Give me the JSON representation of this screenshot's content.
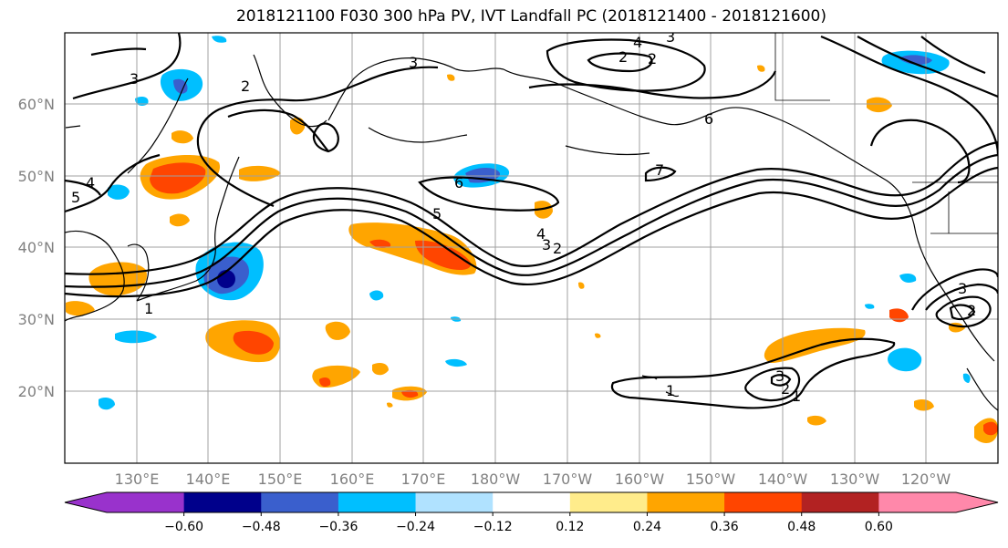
{
  "title": "2018121100 F030 300 hPa PV, IVT Landfall PC (2018121400 - 2018121600)",
  "map": {
    "lat_labels": [
      "60°N",
      "50°N",
      "40°N",
      "30°N",
      "20°N"
    ],
    "lon_labels": [
      "130°E",
      "140°E",
      "150°E",
      "160°E",
      "170°E",
      "180°W",
      "170°W",
      "160°W",
      "150°W",
      "140°W",
      "130°W",
      "120°W"
    ],
    "contour_labels": [
      "3",
      "2",
      "4",
      "5",
      "3",
      "4",
      "2",
      "6",
      "5",
      "6",
      "7",
      "4",
      "3",
      "2",
      "1",
      "3",
      "2",
      "1",
      "3",
      "2",
      "1",
      "2",
      "3"
    ]
  },
  "colorbar": {
    "ticks": [
      "−0.60",
      "−0.48",
      "−0.36",
      "−0.24",
      "−0.12",
      "0.12",
      "0.24",
      "0.36",
      "0.48",
      "0.60"
    ],
    "colors": [
      "#9932cc",
      "#00008b",
      "#3a5fcd",
      "#00bfff",
      "#b0e2ff",
      "#ffffff",
      "#ffec8b",
      "#ffa500",
      "#ff4500",
      "#b22222",
      "#ff88aa"
    ]
  }
}
